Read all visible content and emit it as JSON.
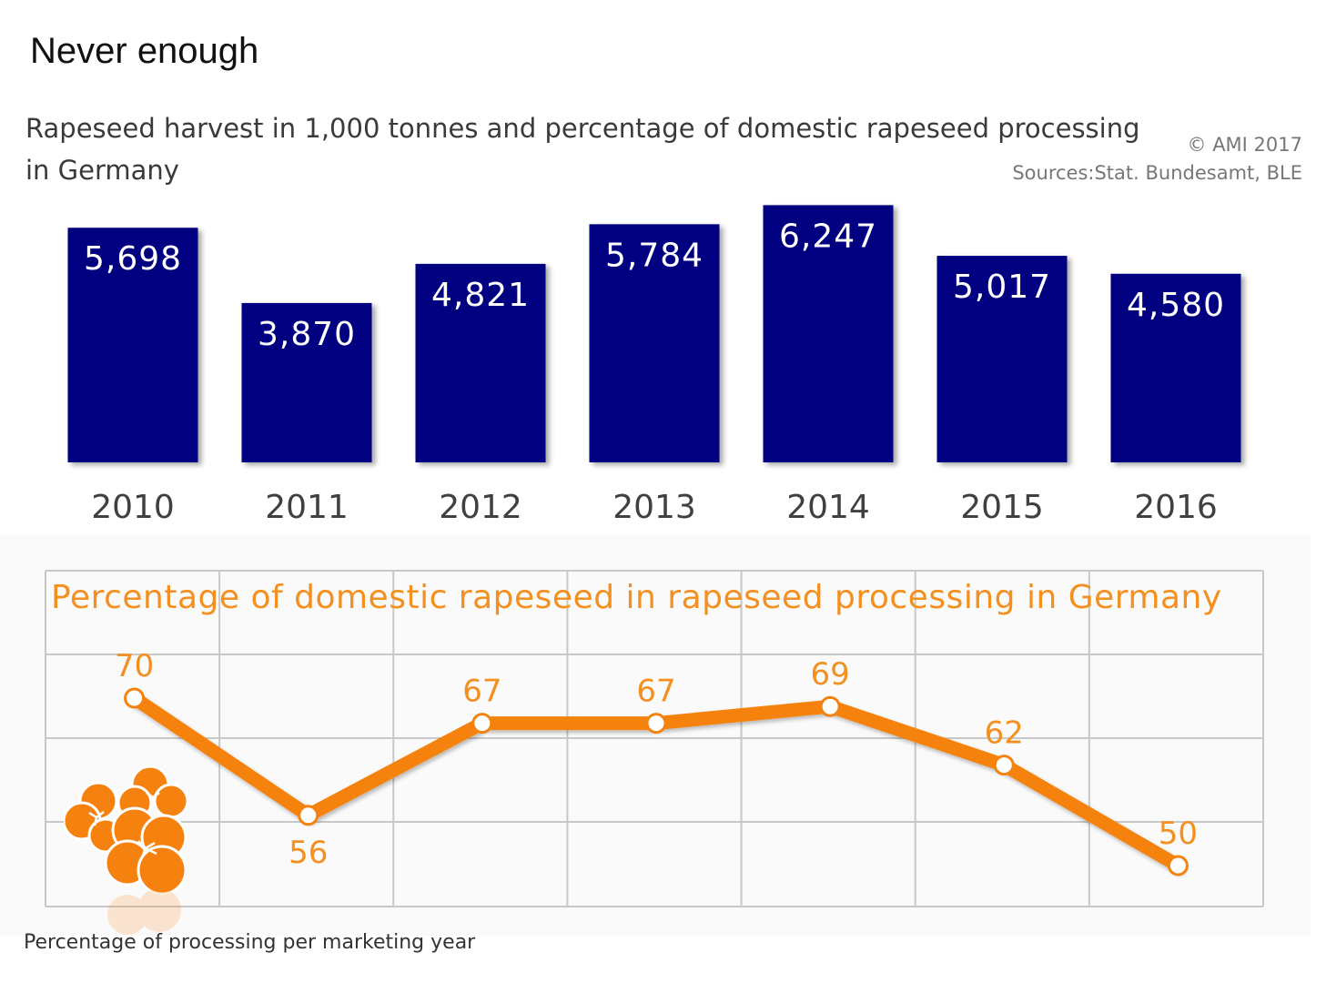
{
  "title": "Never enough",
  "subtitle": "Rapeseed harvest in 1,000 tonnes and percentage of domestic rapeseed processing in Germany",
  "credit": {
    "copyright": "© AMI 2017",
    "sources": "Sources:Stat. Bundesamt, BLE"
  },
  "footnote": "Percentage of processing per marketing year",
  "colors": {
    "bar": "#000080",
    "line": "#f5820e",
    "line_title": "#f39020",
    "grid": "#c8c8c8"
  },
  "icons": {
    "flower": "rapeseed-flower-icon"
  },
  "chart_data": [
    {
      "type": "bar",
      "title": "",
      "categories": [
        "2010",
        "2011",
        "2012",
        "2013",
        "2014",
        "2015",
        "2016"
      ],
      "values": [
        5698,
        3870,
        4821,
        5784,
        6247,
        5017,
        4580
      ],
      "value_labels": [
        "5,698",
        "3,870",
        "4,821",
        "5,784",
        "6,247",
        "5,017",
        "4,580"
      ],
      "xlabel": "",
      "ylabel": "",
      "ylim": [
        0,
        6300
      ],
      "grid": false
    },
    {
      "type": "line",
      "title": "Percentage of domestic rapeseed in rapeseed processing in Germany",
      "categories": [
        "2010",
        "2011",
        "2012",
        "2013",
        "2014",
        "2015",
        "2016"
      ],
      "values": [
        70,
        56,
        67,
        67,
        69,
        62,
        50
      ],
      "value_labels": [
        "70",
        "56",
        "67",
        "67",
        "69",
        "62",
        "50"
      ],
      "xlabel": "",
      "ylabel": "",
      "ylim": [
        40,
        80
      ],
      "grid": true
    }
  ]
}
